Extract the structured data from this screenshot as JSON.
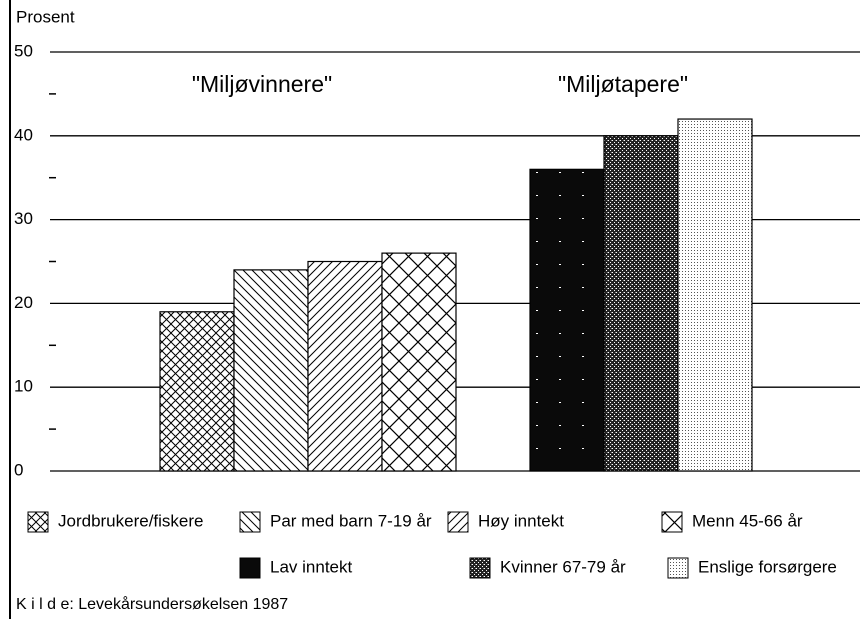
{
  "chart_data": {
    "type": "bar",
    "y_label": "Prosent",
    "groups": [
      {
        "label": "\"Miljøvinnere\"",
        "categories": [
          "Jordbrukere/fiskere",
          "Par med barn 7-19 år",
          "Høy inntekt",
          "Menn 45-66 år"
        ],
        "values": [
          19,
          24,
          25,
          26
        ],
        "patterns": [
          "crosshatch",
          "back-diagonal",
          "diagonal",
          "wide-crosshatch"
        ]
      },
      {
        "label": "\"Miljøtapere\"",
        "categories": [
          "Lav inntekt",
          "Kvinner 67-79 år",
          "Enslige forsørgere"
        ],
        "values": [
          36,
          40,
          42
        ],
        "patterns": [
          "solid-black",
          "dense-dots",
          "light-dots"
        ]
      }
    ],
    "ylim": [
      0,
      50
    ],
    "yticks": [
      0,
      10,
      20,
      30,
      40,
      50
    ],
    "minor_yticks": [
      5,
      15,
      25,
      35,
      45
    ],
    "grid": true,
    "source": "K i l d e: Levekårsundersøkelsen 1987"
  }
}
